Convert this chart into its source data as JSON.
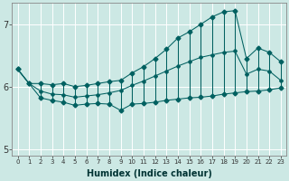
{
  "xlabel": "Humidex (Indice chaleur)",
  "xlim": [
    -0.5,
    23.5
  ],
  "ylim": [
    4.9,
    7.35
  ],
  "yticks": [
    5,
    6,
    7
  ],
  "xticks": [
    0,
    1,
    2,
    3,
    4,
    5,
    6,
    7,
    8,
    9,
    10,
    11,
    12,
    13,
    14,
    15,
    16,
    17,
    18,
    19,
    20,
    21,
    22,
    23
  ],
  "bg_color": "#cce8e4",
  "line_color": "#006060",
  "x": [
    0,
    1,
    2,
    3,
    4,
    5,
    6,
    7,
    8,
    9,
    10,
    11,
    12,
    13,
    14,
    15,
    16,
    17,
    18,
    19,
    20,
    21,
    22,
    23
  ],
  "y_high": [
    6.28,
    6.05,
    6.05,
    6.03,
    6.05,
    6.0,
    6.02,
    6.05,
    6.08,
    6.1,
    6.22,
    6.32,
    6.45,
    6.6,
    6.78,
    6.88,
    7.0,
    7.12,
    7.2,
    7.22,
    6.45,
    6.62,
    6.55,
    6.4
  ],
  "y_low": [
    6.28,
    6.05,
    5.82,
    5.78,
    5.75,
    5.7,
    5.72,
    5.73,
    5.72,
    5.62,
    5.72,
    5.73,
    5.75,
    5.78,
    5.8,
    5.82,
    5.83,
    5.85,
    5.88,
    5.9,
    5.92,
    5.93,
    5.95,
    5.98
  ],
  "y_mid": [
    6.28,
    6.05,
    5.93,
    5.88,
    5.87,
    5.83,
    5.85,
    5.87,
    5.9,
    5.94,
    6.02,
    6.09,
    6.17,
    6.25,
    6.33,
    6.4,
    6.47,
    6.51,
    6.55,
    6.57,
    6.2,
    6.28,
    6.25,
    6.1
  ]
}
